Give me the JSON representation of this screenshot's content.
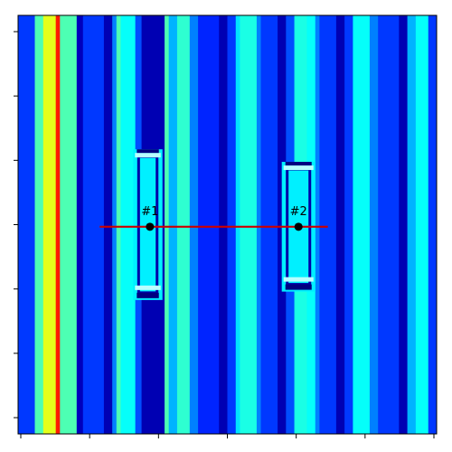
{
  "chart_data": {
    "type": "heatmap",
    "title": "",
    "xlabel": "",
    "ylabel": "",
    "colormap": "jet",
    "x_ticks": 7,
    "y_ticks": 7,
    "tick_labels_shown": false,
    "grid": false,
    "legend": "none",
    "stripes": [
      {
        "x0": 0.0,
        "x1": 0.04,
        "value": 0.18
      },
      {
        "x0": 0.04,
        "x1": 0.06,
        "value": 0.45
      },
      {
        "x0": 0.06,
        "x1": 0.09,
        "value": 0.6
      },
      {
        "x0": 0.09,
        "x1": 0.1,
        "value": 0.85
      },
      {
        "x0": 0.1,
        "x1": 0.14,
        "value": 0.45
      },
      {
        "x0": 0.14,
        "x1": 0.155,
        "value": 0.06
      },
      {
        "x0": 0.155,
        "x1": 0.205,
        "value": 0.18
      },
      {
        "x0": 0.205,
        "x1": 0.225,
        "value": 0.05
      },
      {
        "x0": 0.225,
        "x1": 0.235,
        "value": 0.25
      },
      {
        "x0": 0.235,
        "x1": 0.245,
        "value": 0.45
      },
      {
        "x0": 0.245,
        "x1": 0.28,
        "value": 0.38
      },
      {
        "x0": 0.28,
        "x1": 0.295,
        "value": 0.2
      },
      {
        "x0": 0.295,
        "x1": 0.35,
        "value": 0.05
      },
      {
        "x0": 0.35,
        "x1": 0.36,
        "value": 0.45
      },
      {
        "x0": 0.36,
        "x1": 0.38,
        "value": 0.3
      },
      {
        "x0": 0.38,
        "x1": 0.41,
        "value": 0.42
      },
      {
        "x0": 0.41,
        "x1": 0.43,
        "value": 0.25
      },
      {
        "x0": 0.43,
        "x1": 0.48,
        "value": 0.16
      },
      {
        "x0": 0.48,
        "x1": 0.5,
        "value": 0.05
      },
      {
        "x0": 0.5,
        "x1": 0.52,
        "value": 0.18
      },
      {
        "x0": 0.52,
        "x1": 0.53,
        "value": 0.35
      },
      {
        "x0": 0.53,
        "x1": 0.57,
        "value": 0.4
      },
      {
        "x0": 0.57,
        "x1": 0.58,
        "value": 0.25
      },
      {
        "x0": 0.58,
        "x1": 0.62,
        "value": 0.18
      },
      {
        "x0": 0.62,
        "x1": 0.64,
        "value": 0.05
      },
      {
        "x0": 0.64,
        "x1": 0.66,
        "value": 0.2
      },
      {
        "x0": 0.66,
        "x1": 0.69,
        "value": 0.4
      },
      {
        "x0": 0.69,
        "x1": 0.71,
        "value": 0.38
      },
      {
        "x0": 0.71,
        "x1": 0.72,
        "value": 0.25
      },
      {
        "x0": 0.72,
        "x1": 0.76,
        "value": 0.18
      },
      {
        "x0": 0.76,
        "x1": 0.78,
        "value": 0.05
      },
      {
        "x0": 0.78,
        "x1": 0.8,
        "value": 0.18
      },
      {
        "x0": 0.8,
        "x1": 0.84,
        "value": 0.38
      },
      {
        "x0": 0.84,
        "x1": 0.86,
        "value": 0.25
      },
      {
        "x0": 0.86,
        "x1": 0.91,
        "value": 0.18
      },
      {
        "x0": 0.91,
        "x1": 0.93,
        "value": 0.05
      },
      {
        "x0": 0.93,
        "x1": 0.95,
        "value": 0.3
      },
      {
        "x0": 0.95,
        "x1": 0.98,
        "value": 0.38
      },
      {
        "x0": 0.98,
        "x1": 1.0,
        "value": 0.18
      }
    ],
    "highlights": [
      {
        "x0": 0.275,
        "x1": 0.345,
        "y0": 0.32,
        "y1": 0.68,
        "value": 0.36
      },
      {
        "x0": 0.63,
        "x1": 0.71,
        "y0": 0.35,
        "y1": 0.66,
        "value": 0.36
      }
    ],
    "profile_line": {
      "x0": 0.195,
      "x1": 0.74,
      "y": 0.505,
      "color": "#cc0000"
    },
    "markers": [
      {
        "label": "#1",
        "x": 0.315,
        "y": 0.505
      },
      {
        "label": "#2",
        "x": 0.67,
        "y": 0.505
      }
    ]
  }
}
